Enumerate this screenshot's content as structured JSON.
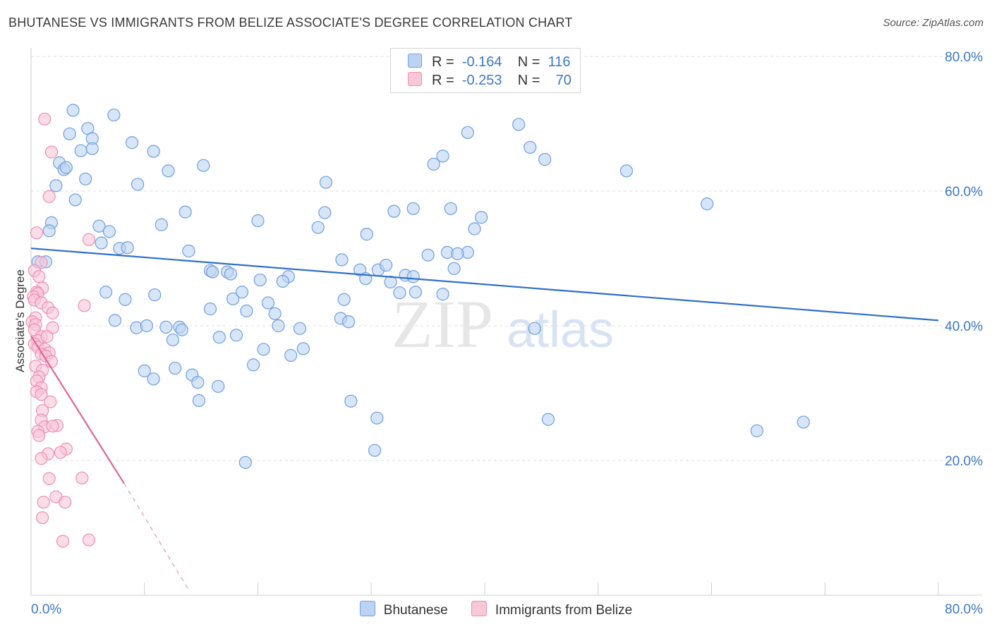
{
  "title": "BHUTANESE VS IMMIGRANTS FROM BELIZE ASSOCIATE'S DEGREE CORRELATION CHART",
  "source": "Source: ZipAtlas.com",
  "watermark": {
    "zip": "ZIP",
    "atlas": "atlas"
  },
  "legend": {
    "rows": [
      {
        "r_label": "R =",
        "r_value": "-0.164",
        "n_label": "N =",
        "n_value": "116"
      },
      {
        "r_label": "R =",
        "r_value": "-0.253",
        "n_label": "N =",
        "n_value": "70"
      }
    ]
  },
  "chart_data": {
    "type": "scatter",
    "title": "BHUTANESE VS IMMIGRANTS FROM BELIZE ASSOCIATE'S DEGREE CORRELATION CHART",
    "xlabel": "",
    "ylabel": "Associate's Degree",
    "xlim": [
      0,
      80
    ],
    "ylim": [
      0,
      80
    ],
    "x_tick_labels": [
      "0.0%",
      "80.0%"
    ],
    "y_ticks": [
      20,
      40,
      60,
      80
    ],
    "y_tick_labels": [
      "20.0%",
      "40.0%",
      "60.0%",
      "80.0%"
    ],
    "grid": true,
    "series": [
      {
        "name": "Bhutanese",
        "color": "#6f9fde",
        "fill": "#bcd3f3",
        "line_color": "#2f6fc9",
        "trend": {
          "x": [
            0,
            80
          ],
          "y": [
            51.5,
            40.8
          ]
        },
        "points": [
          [
            3.7,
            72
          ],
          [
            7.3,
            71.3
          ],
          [
            3.4,
            68.5
          ],
          [
            5.0,
            69.3
          ],
          [
            5.4,
            67.8
          ],
          [
            4.4,
            66.0
          ],
          [
            5.4,
            66.3
          ],
          [
            8.9,
            67.2
          ],
          [
            10.8,
            65.9
          ],
          [
            2.5,
            64.2
          ],
          [
            2.9,
            63.2
          ],
          [
            3.1,
            63.5
          ],
          [
            12.1,
            63.0
          ],
          [
            15.2,
            63.8
          ],
          [
            4.8,
            61.8
          ],
          [
            2.2,
            60.8
          ],
          [
            9.4,
            61.0
          ],
          [
            3.9,
            58.7
          ],
          [
            13.6,
            56.9
          ],
          [
            1.8,
            55.3
          ],
          [
            6.0,
            54.8
          ],
          [
            11.5,
            55.0
          ],
          [
            1.6,
            54.1
          ],
          [
            6.9,
            54.0
          ],
          [
            6.2,
            52.3
          ],
          [
            7.8,
            51.5
          ],
          [
            8.5,
            51.6
          ],
          [
            13.9,
            51.1
          ],
          [
            0.6,
            49.5
          ],
          [
            1.3,
            49.5
          ],
          [
            15.8,
            48.2
          ],
          [
            17.3,
            48.0
          ],
          [
            17.6,
            47.7
          ],
          [
            20.2,
            46.8
          ],
          [
            22.7,
            47.3
          ],
          [
            22.2,
            46.6
          ],
          [
            16.0,
            48.0
          ],
          [
            6.6,
            45.0
          ],
          [
            10.9,
            44.6
          ],
          [
            8.3,
            43.9
          ],
          [
            17.8,
            44.0
          ],
          [
            18.6,
            45.0
          ],
          [
            19.0,
            42.2
          ],
          [
            15.8,
            42.5
          ],
          [
            20.9,
            43.4
          ],
          [
            21.5,
            41.8
          ],
          [
            7.4,
            40.8
          ],
          [
            9.3,
            39.7
          ],
          [
            10.2,
            40.0
          ],
          [
            11.9,
            39.8
          ],
          [
            13.1,
            39.8
          ],
          [
            13.3,
            39.4
          ],
          [
            12.5,
            37.9
          ],
          [
            16.6,
            38.3
          ],
          [
            18.1,
            38.6
          ],
          [
            21.8,
            40.0
          ],
          [
            23.7,
            39.6
          ],
          [
            20.5,
            36.5
          ],
          [
            10.0,
            33.3
          ],
          [
            10.8,
            32.1
          ],
          [
            12.7,
            33.7
          ],
          [
            14.2,
            32.7
          ],
          [
            14.7,
            31.6
          ],
          [
            16.5,
            31.0
          ],
          [
            19.6,
            34.2
          ],
          [
            22.9,
            35.6
          ],
          [
            24.0,
            36.6
          ],
          [
            14.8,
            28.9
          ],
          [
            18.9,
            19.7
          ],
          [
            26.0,
            61.3
          ],
          [
            25.9,
            56.8
          ],
          [
            25.3,
            54.6
          ],
          [
            20.0,
            55.6
          ],
          [
            29.6,
            53.6
          ],
          [
            27.4,
            49.8
          ],
          [
            29.0,
            48.3
          ],
          [
            30.6,
            48.3
          ],
          [
            29.5,
            47.0
          ],
          [
            31.3,
            49.0
          ],
          [
            31.7,
            46.5
          ],
          [
            33.0,
            47.5
          ],
          [
            33.7,
            47.3
          ],
          [
            27.6,
            43.9
          ],
          [
            27.3,
            41.1
          ],
          [
            28.0,
            40.6
          ],
          [
            32.5,
            44.9
          ],
          [
            33.9,
            45.0
          ],
          [
            36.3,
            44.7
          ],
          [
            35.0,
            50.5
          ],
          [
            36.7,
            50.9
          ],
          [
            38.5,
            50.9
          ],
          [
            37.6,
            50.7
          ],
          [
            37.3,
            48.5
          ],
          [
            39.1,
            54.4
          ],
          [
            39.7,
            56.1
          ],
          [
            37.0,
            57.4
          ],
          [
            32.0,
            57.0
          ],
          [
            33.7,
            57.4
          ],
          [
            35.5,
            64.0
          ],
          [
            36.3,
            65.2
          ],
          [
            38.5,
            68.7
          ],
          [
            43.0,
            69.9
          ],
          [
            44.0,
            66.5
          ],
          [
            45.3,
            64.7
          ],
          [
            52.5,
            63.0
          ],
          [
            59.6,
            58.1
          ],
          [
            44.4,
            39.6
          ],
          [
            45.6,
            26.1
          ],
          [
            28.2,
            28.8
          ],
          [
            30.5,
            26.3
          ],
          [
            30.3,
            21.5
          ],
          [
            64.0,
            24.4
          ],
          [
            68.1,
            25.7
          ]
        ]
      },
      {
        "name": "Immigrants from Belize",
        "color": "#ee8fb0",
        "fill": "#f8c7d8",
        "line_color": "#e06593",
        "trend": {
          "x": [
            0,
            8.2
          ],
          "y": [
            38.5,
            16.6
          ]
        },
        "trend_ext": {
          "x": [
            8.2,
            14.0
          ],
          "y": [
            16.6,
            0.5
          ]
        },
        "points": [
          [
            1.2,
            70.7
          ],
          [
            1.8,
            65.8
          ],
          [
            1.6,
            59.2
          ],
          [
            0.5,
            53.8
          ],
          [
            5.1,
            52.8
          ],
          [
            0.9,
            49.4
          ],
          [
            0.3,
            48.2
          ],
          [
            0.7,
            47.3
          ],
          [
            1.0,
            45.6
          ],
          [
            0.5,
            45.0
          ],
          [
            0.6,
            44.8
          ],
          [
            0.2,
            44.3
          ],
          [
            0.3,
            43.8
          ],
          [
            0.9,
            43.4
          ],
          [
            1.5,
            42.7
          ],
          [
            4.7,
            43.0
          ],
          [
            1.9,
            41.9
          ],
          [
            0.4,
            41.2
          ],
          [
            0.1,
            40.6
          ],
          [
            0.4,
            40.2
          ],
          [
            1.9,
            39.7
          ],
          [
            0.3,
            39.4
          ],
          [
            0.9,
            38.4
          ],
          [
            0.6,
            37.8
          ],
          [
            1.4,
            38.4
          ],
          [
            0.3,
            37.3
          ],
          [
            0.6,
            36.8
          ],
          [
            1.2,
            36.5
          ],
          [
            1.6,
            36.0
          ],
          [
            0.9,
            35.8
          ],
          [
            1.3,
            35.5
          ],
          [
            1.8,
            34.7
          ],
          [
            0.4,
            34.0
          ],
          [
            1.0,
            33.4
          ],
          [
            0.7,
            32.4
          ],
          [
            0.5,
            31.8
          ],
          [
            0.9,
            30.8
          ],
          [
            0.5,
            30.2
          ],
          [
            0.9,
            29.8
          ],
          [
            1.7,
            28.7
          ],
          [
            1.0,
            27.4
          ],
          [
            0.9,
            26.0
          ],
          [
            1.2,
            25.0
          ],
          [
            2.3,
            25.2
          ],
          [
            1.9,
            25.1
          ],
          [
            0.6,
            24.3
          ],
          [
            0.7,
            23.7
          ],
          [
            3.1,
            21.7
          ],
          [
            1.5,
            21.0
          ],
          [
            2.6,
            21.2
          ],
          [
            0.9,
            20.3
          ],
          [
            1.6,
            17.3
          ],
          [
            4.5,
            17.4
          ],
          [
            2.2,
            14.6
          ],
          [
            1.1,
            13.8
          ],
          [
            3.0,
            13.8
          ],
          [
            1.0,
            11.5
          ],
          [
            2.8,
            8.0
          ],
          [
            5.1,
            8.2
          ]
        ]
      }
    ]
  }
}
